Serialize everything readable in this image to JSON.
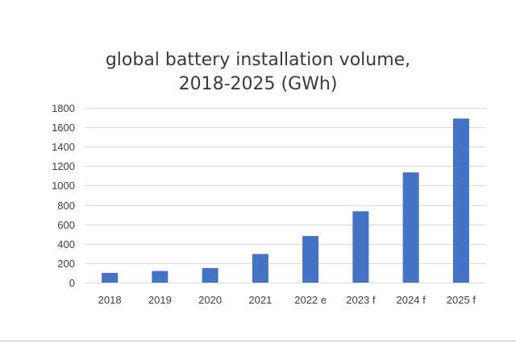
{
  "chart_data": {
    "type": "bar",
    "title_lines": [
      "global battery installation volume,",
      "2018-2025 (GWh)"
    ],
    "categories": [
      "2018",
      "2019",
      "2020",
      "2021",
      "2022 e",
      "2023 f",
      "2024 f",
      "2025 f"
    ],
    "values": [
      100,
      120,
      150,
      295,
      480,
      735,
      1135,
      1690
    ],
    "ylim": [
      0,
      1800
    ],
    "yticks": [
      0,
      200,
      400,
      600,
      800,
      1000,
      1200,
      1400,
      1600,
      1800
    ],
    "grid": true,
    "legend": "none",
    "xlabel": "",
    "ylabel": ""
  },
  "colors": {
    "bar": "#4472c4",
    "grid": "#d9d9d9",
    "text": "#404040"
  }
}
